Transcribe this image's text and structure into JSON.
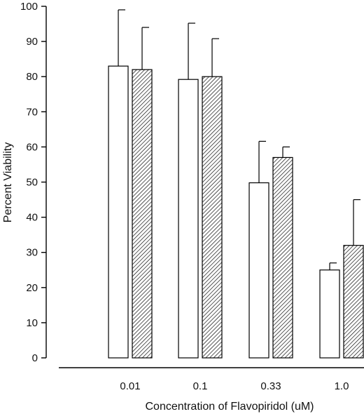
{
  "chart_data": {
    "type": "bar",
    "xlabel": "Concentration of Flavopiridol (uM)",
    "ylabel": "Percent Viability",
    "ylim": [
      0,
      100
    ],
    "yticks": [
      0,
      10,
      20,
      30,
      40,
      50,
      60,
      70,
      80,
      90,
      100
    ],
    "categories": [
      "0.01",
      "0.1",
      "0.33",
      "1.0"
    ],
    "grid": false,
    "series": [
      {
        "fill": "#ffffff",
        "pattern": "none",
        "values": [
          83,
          79.2,
          49.8,
          25
        ],
        "error_upper": [
          16,
          16,
          11.8,
          2
        ]
      },
      {
        "fill": "#ffffff",
        "pattern": "diagonal-hatch",
        "values": [
          82,
          80,
          57,
          32
        ],
        "error_upper": [
          12,
          10.8,
          3,
          13
        ]
      }
    ]
  }
}
